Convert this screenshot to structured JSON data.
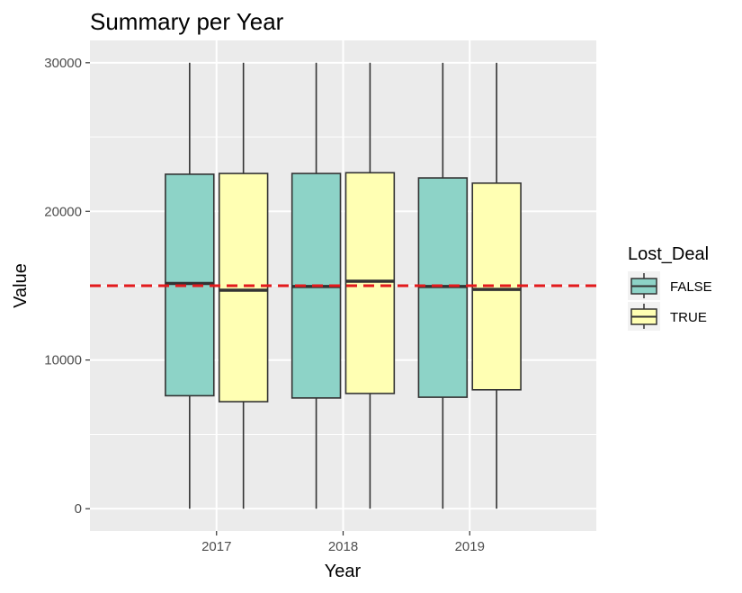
{
  "chart_data": {
    "type": "box",
    "title": "Summary per Year",
    "xlabel": "Year",
    "ylabel": "Value",
    "categories": [
      "2017",
      "2018",
      "2019"
    ],
    "yticks": [
      0,
      10000,
      20000,
      30000
    ],
    "ylim": [
      -1500,
      31500
    ],
    "reference_line": {
      "value": 15000,
      "color": "#e31a1c",
      "style": "dashed"
    },
    "legend": {
      "title": "Lost_Deal",
      "position": "right"
    },
    "series": [
      {
        "name": "FALSE",
        "color": "#8dd3c7",
        "boxes": [
          {
            "category": "2017",
            "min": 0,
            "q1": 7600,
            "median": 15150,
            "q3": 22500,
            "max": 30000
          },
          {
            "category": "2018",
            "min": 0,
            "q1": 7450,
            "median": 14950,
            "q3": 22550,
            "max": 30000
          },
          {
            "category": "2019",
            "min": 0,
            "q1": 7500,
            "median": 14950,
            "q3": 22250,
            "max": 30000
          }
        ]
      },
      {
        "name": "TRUE",
        "color": "#ffffb3",
        "boxes": [
          {
            "category": "2017",
            "min": 0,
            "q1": 7200,
            "median": 14700,
            "q3": 22550,
            "max": 30000
          },
          {
            "category": "2018",
            "min": 0,
            "q1": 7750,
            "median": 15300,
            "q3": 22600,
            "max": 30000
          },
          {
            "category": "2019",
            "min": 0,
            "q1": 8000,
            "median": 14750,
            "q3": 21900,
            "max": 30000
          }
        ]
      }
    ],
    "grid": true,
    "panel_background": "#ebebeb"
  }
}
